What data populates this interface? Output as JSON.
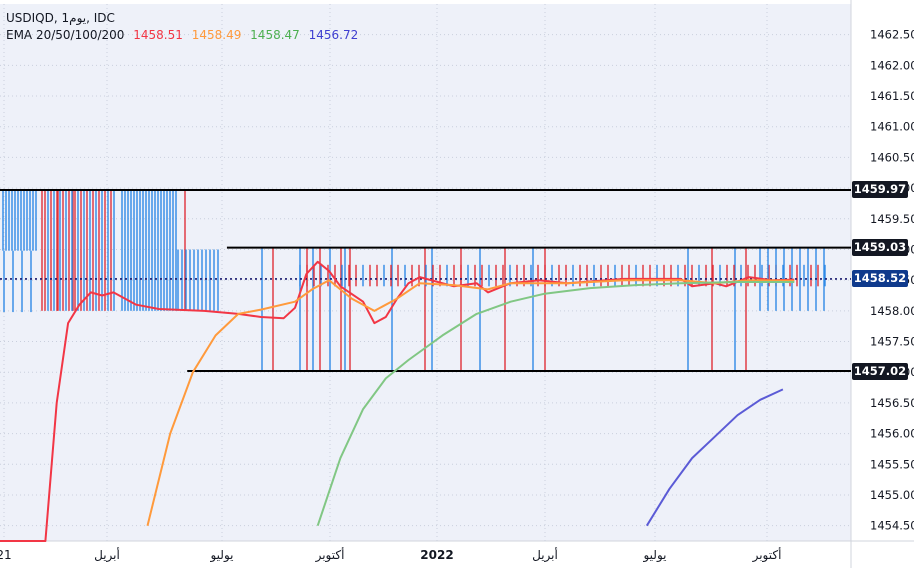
{
  "symbol_line": "USDIQD, 1يوم, IDC",
  "ema_legend": {
    "label": "EMA 20/50/100/200",
    "values": [
      "1458.51",
      "1458.49",
      "1458.47",
      "1456.72"
    ]
  },
  "colors": {
    "ema20": "#f23645",
    "ema50": "#ff9a3c",
    "ema100": "#81c784",
    "ema200": "#5b5bd6",
    "bar_up": "#2f8ae6",
    "bar_down": "#e0303a",
    "current_price_bg": "#0f3a8c",
    "hline_label_bg": "#131722"
  },
  "chart_data": {
    "type": "line",
    "title": "",
    "y_ticks": [
      "1462.50",
      "1462.00",
      "1461.50",
      "1461.00",
      "1460.50",
      "1460.00",
      "1459.50",
      "1459.00",
      "1458.50",
      "1458.00",
      "1457.50",
      "1457.00",
      "1456.50",
      "1456.00",
      "1455.50",
      "1455.00",
      "1454.50"
    ],
    "ylim": [
      1454.25,
      1463.0
    ],
    "x_labels": [
      "21",
      "أبريل",
      "يوليو",
      "أكتوبر",
      "2022",
      "أبريل",
      "يوليو",
      "أكتوبر"
    ],
    "horizontal_levels": [
      {
        "value": 1459.97,
        "label": "1459.97",
        "x_start_index": 0
      },
      {
        "value": 1459.03,
        "label": "1459.03",
        "x_start_index": 40
      },
      {
        "value": 1457.02,
        "label": "1457.02",
        "x_start_index": 33
      }
    ],
    "current_price": {
      "value": 1458.52,
      "label": "1458.52"
    },
    "series": [
      {
        "key": "ema20",
        "points": [
          [
            0,
            1452.0
          ],
          [
            8,
            1454.2
          ],
          [
            10,
            1456.5
          ],
          [
            12,
            1457.8
          ],
          [
            14,
            1458.1
          ],
          [
            16,
            1458.3
          ],
          [
            18,
            1458.25
          ],
          [
            20,
            1458.3
          ],
          [
            24,
            1458.1
          ],
          [
            28,
            1458.03
          ],
          [
            36,
            1458.0
          ],
          [
            42,
            1457.95
          ],
          [
            46,
            1457.9
          ],
          [
            50,
            1457.88
          ],
          [
            52,
            1458.05
          ],
          [
            54,
            1458.6
          ],
          [
            56,
            1458.8
          ],
          [
            58,
            1458.65
          ],
          [
            60,
            1458.4
          ],
          [
            64,
            1458.15
          ],
          [
            66,
            1457.8
          ],
          [
            68,
            1457.9
          ],
          [
            70,
            1458.2
          ],
          [
            72,
            1458.45
          ],
          [
            74,
            1458.55
          ],
          [
            80,
            1458.4
          ],
          [
            84,
            1458.45
          ],
          [
            86,
            1458.3
          ],
          [
            90,
            1458.45
          ],
          [
            95,
            1458.5
          ],
          [
            100,
            1458.45
          ],
          [
            110,
            1458.52
          ],
          [
            120,
            1458.52
          ],
          [
            122,
            1458.4
          ],
          [
            126,
            1458.45
          ],
          [
            128,
            1458.4
          ],
          [
            132,
            1458.55
          ],
          [
            136,
            1458.5
          ],
          [
            140,
            1458.51
          ]
        ]
      },
      {
        "key": "ema50",
        "points": [
          [
            26,
            1454.5
          ],
          [
            30,
            1456.0
          ],
          [
            34,
            1457.0
          ],
          [
            38,
            1457.6
          ],
          [
            42,
            1457.95
          ],
          [
            46,
            1458.02
          ],
          [
            52,
            1458.15
          ],
          [
            55,
            1458.35
          ],
          [
            58,
            1458.5
          ],
          [
            62,
            1458.2
          ],
          [
            66,
            1458.0
          ],
          [
            70,
            1458.2
          ],
          [
            74,
            1458.45
          ],
          [
            80,
            1458.42
          ],
          [
            86,
            1458.35
          ],
          [
            90,
            1458.45
          ],
          [
            100,
            1458.45
          ],
          [
            110,
            1458.5
          ],
          [
            120,
            1458.5
          ],
          [
            126,
            1458.45
          ],
          [
            132,
            1458.5
          ],
          [
            140,
            1458.49
          ]
        ]
      },
      {
        "key": "ema100",
        "points": [
          [
            56,
            1454.5
          ],
          [
            60,
            1455.6
          ],
          [
            64,
            1456.4
          ],
          [
            68,
            1456.9
          ],
          [
            72,
            1457.2
          ],
          [
            78,
            1457.6
          ],
          [
            84,
            1457.95
          ],
          [
            90,
            1458.15
          ],
          [
            96,
            1458.28
          ],
          [
            104,
            1458.37
          ],
          [
            112,
            1458.42
          ],
          [
            120,
            1458.45
          ],
          [
            130,
            1458.47
          ],
          [
            140,
            1458.47
          ]
        ]
      },
      {
        "key": "ema200",
        "points": [
          [
            114,
            1454.5
          ],
          [
            118,
            1455.1
          ],
          [
            122,
            1455.6
          ],
          [
            126,
            1455.95
          ],
          [
            130,
            1456.3
          ],
          [
            134,
            1456.55
          ],
          [
            138,
            1456.72
          ]
        ]
      }
    ]
  }
}
